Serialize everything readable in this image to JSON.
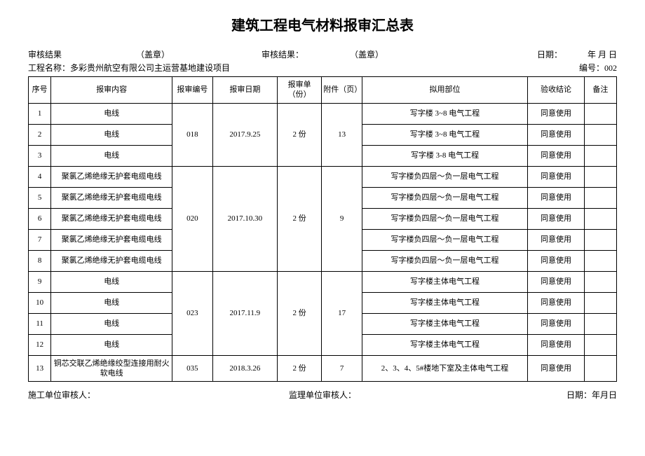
{
  "title": "建筑工程电气材料报审汇总表",
  "meta": {
    "review_result_label": "审核结果",
    "seal_label": "（盖章）",
    "review_result_label2": "审核结果：",
    "date_label": "日期：",
    "date_value": "年 月 日",
    "project_label": "工程名称：",
    "project_name": "多彩贵州航空有限公司主运营基地建设项目",
    "serial_label": "编号：",
    "serial_value": "002"
  },
  "headers": {
    "seq": "序号",
    "content": "报审内容",
    "num": "报审编号",
    "date": "报审日期",
    "copies": "报审单（份）",
    "attach": "附件（页）",
    "pos": "拟用部位",
    "result": "验收结论",
    "remark": "备注"
  },
  "groups": [
    {
      "num": "018",
      "date": "2017.9.25",
      "copies": "2 份",
      "attach": "13",
      "rows": [
        {
          "seq": "1",
          "content": "电线",
          "pos": "写字楼 3~8 电气工程",
          "result": "同意使用",
          "remark": ""
        },
        {
          "seq": "2",
          "content": "电线",
          "pos": "写字楼 3~8 电气工程",
          "result": "同意使用",
          "remark": ""
        },
        {
          "seq": "3",
          "content": "电线",
          "pos": "写字楼 3-8 电气工程",
          "result": "同意使用",
          "remark": ""
        }
      ]
    },
    {
      "num": "020",
      "date": "2017.10.30",
      "copies": "2 份",
      "attach": "9",
      "rows": [
        {
          "seq": "4",
          "content": "聚氯乙烯绝缘无护套电缆电线",
          "pos": "写字楼负四层～负一层电气工程",
          "result": "同意使用",
          "remark": ""
        },
        {
          "seq": "5",
          "content": "聚氯乙烯绝缘无护套电缆电线",
          "pos": "写字楼负四层～负一层电气工程",
          "result": "同意使用",
          "remark": ""
        },
        {
          "seq": "6",
          "content": "聚氯乙烯绝缘无护套电缆电线",
          "pos": "写字楼负四层～负一层电气工程",
          "result": "同意使用",
          "remark": ""
        },
        {
          "seq": "7",
          "content": "聚氯乙烯绝缘无护套电缆电线",
          "pos": "写字楼负四层～负一层电气工程",
          "result": "同意使用",
          "remark": ""
        },
        {
          "seq": "8",
          "content": "聚氯乙烯绝缘无护套电缆电线",
          "pos": "写字楼负四层～负一层电气工程",
          "result": "同意使用",
          "remark": ""
        }
      ]
    },
    {
      "num": "023",
      "date": "2017.11.9",
      "copies": "2 份",
      "attach": "17",
      "rows": [
        {
          "seq": "9",
          "content": "电线",
          "pos": "写字楼主体电气工程",
          "result": "同意使用",
          "remark": ""
        },
        {
          "seq": "10",
          "content": "电线",
          "pos": "写字楼主体电气工程",
          "result": "同意使用",
          "remark": ""
        },
        {
          "seq": "11",
          "content": "电线",
          "pos": "写字楼主体电气工程",
          "result": "同意使用",
          "remark": ""
        },
        {
          "seq": "12",
          "content": "电线",
          "pos": "写字楼主体电气工程",
          "result": "同意使用",
          "remark": ""
        }
      ]
    },
    {
      "num": "035",
      "date": "2018.3.26",
      "copies": "2 份",
      "attach": "7",
      "rows": [
        {
          "seq": "13",
          "content": "铜芯交联乙烯绝缘绞型连接用耐火软电线",
          "pos": "2、3、4、5#楼地下室及主体电气工程",
          "result": "同意使用",
          "remark": ""
        }
      ]
    }
  ],
  "footer": {
    "construction_reviewer": "施工单位审核人：",
    "supervision_reviewer": "监理单位审核人：",
    "date_label": "日期：年月日"
  }
}
